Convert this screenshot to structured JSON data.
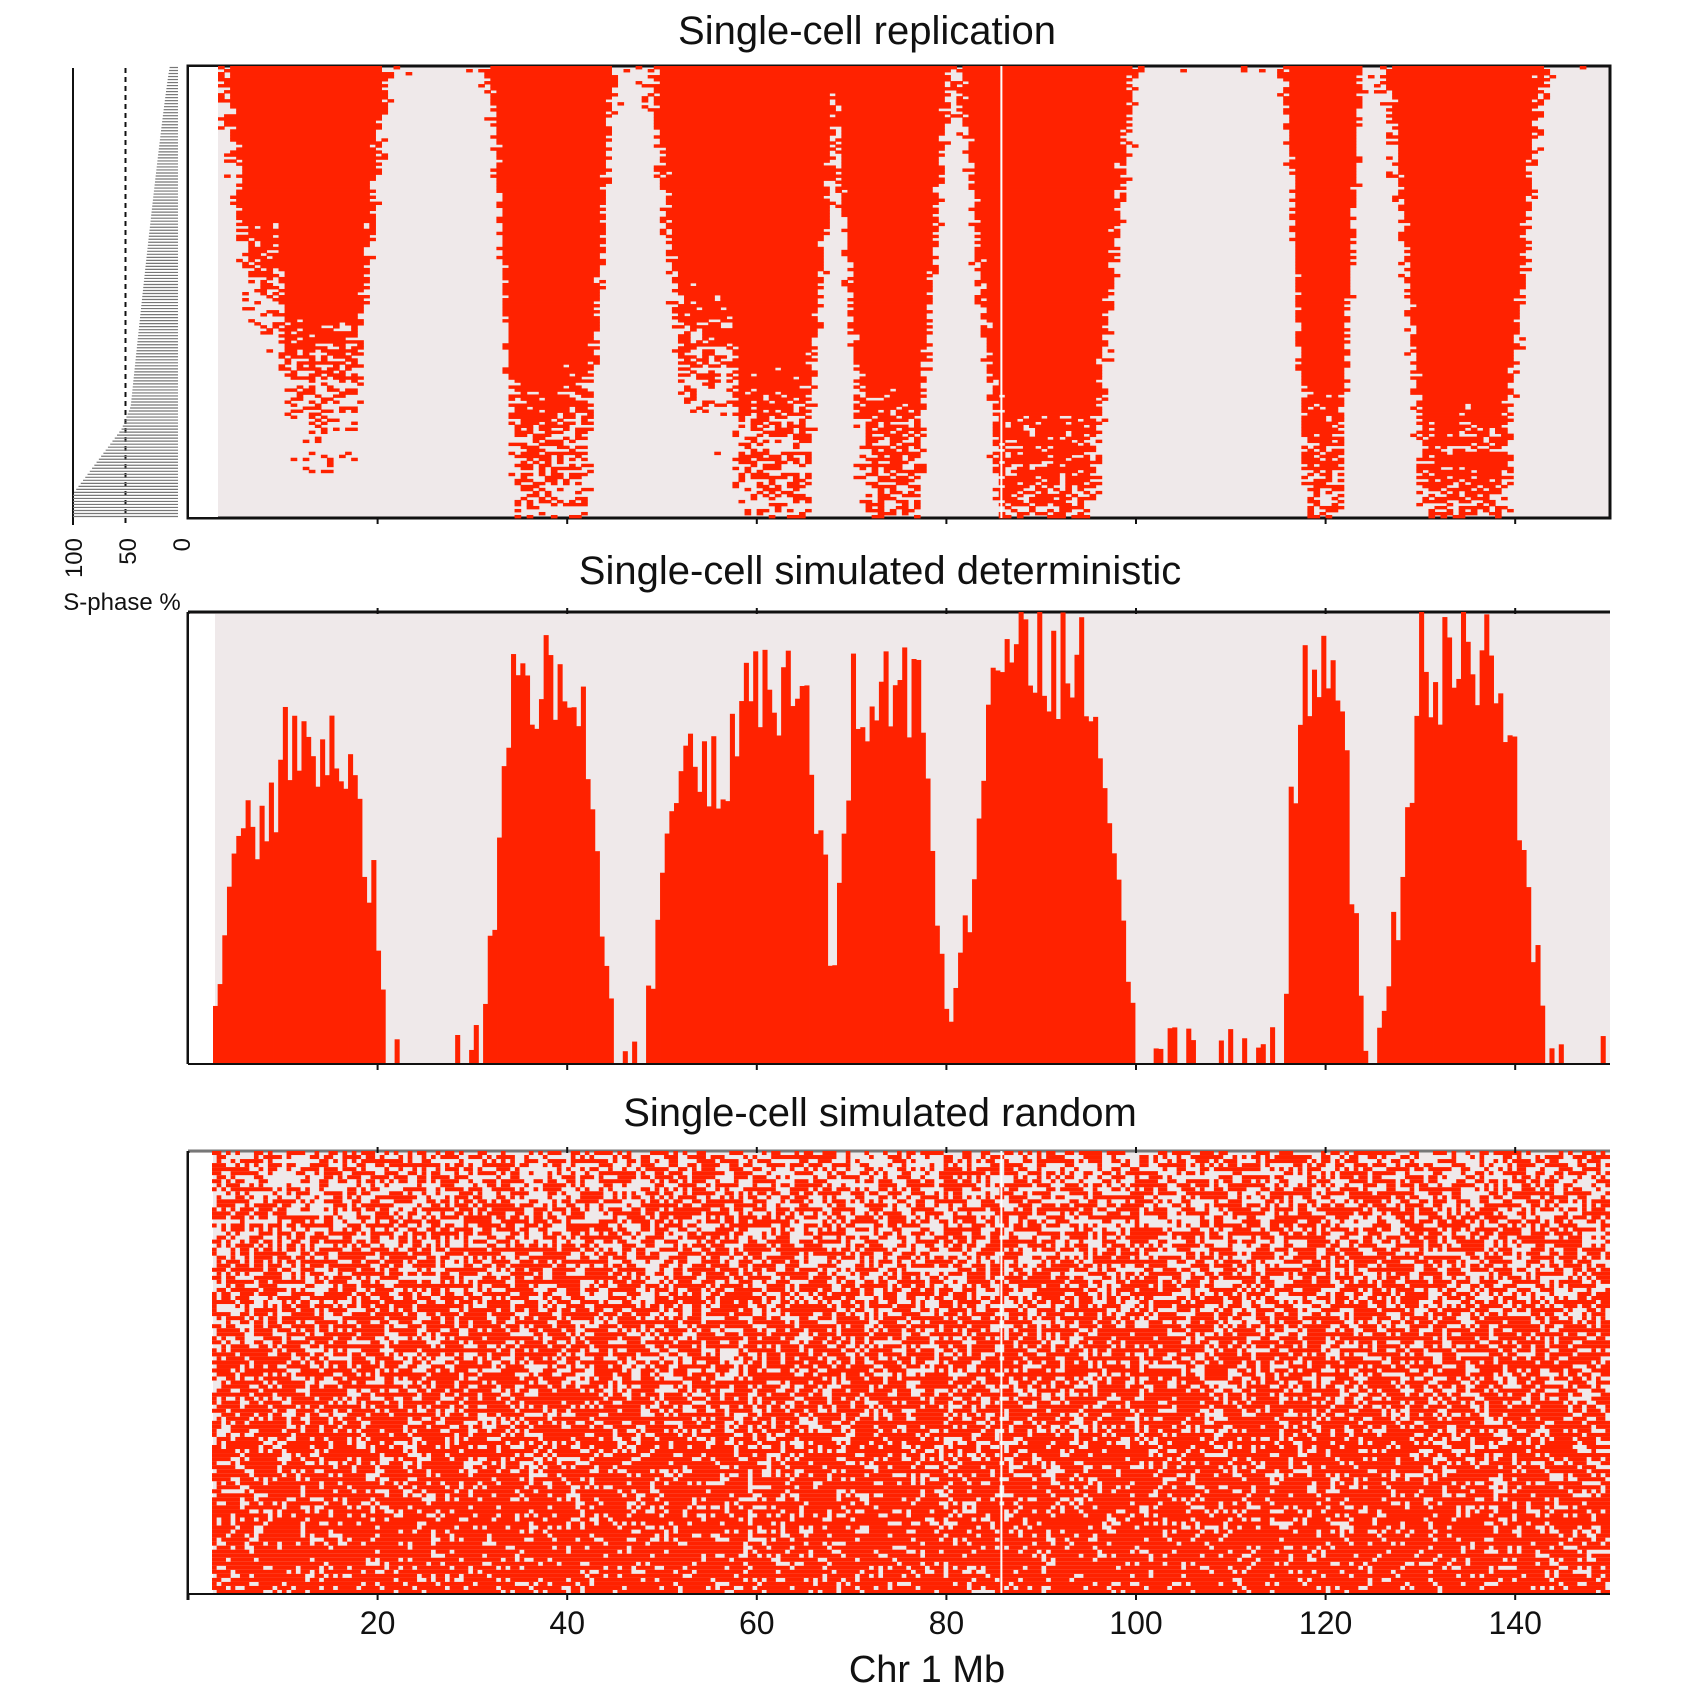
{
  "chart_data": {
    "type": "heatmap",
    "xlabel": "Chr 1 Mb",
    "xlim": [
      0,
      150
    ],
    "xticks": [
      20,
      40,
      60,
      80,
      100,
      120,
      140
    ],
    "ylabel": "S-phase %",
    "ylim": [
      0,
      100
    ],
    "accent_color": "#ff2200",
    "background_color": "#efe9ea",
    "panels": [
      {
        "id": "observed",
        "title": "Single-cell replication",
        "style": "heatmap-observed",
        "early_domains_mb": [
          {
            "start": 6,
            "end": 12,
            "s_phase_pct": 60
          },
          {
            "start": 10,
            "end": 16,
            "s_phase_pct": 80
          },
          {
            "start": 34,
            "end": 38,
            "s_phase_pct": 95
          },
          {
            "start": 37,
            "end": 41,
            "s_phase_pct": 90
          },
          {
            "start": 52,
            "end": 58,
            "s_phase_pct": 75
          },
          {
            "start": 58,
            "end": 64,
            "s_phase_pct": 92
          },
          {
            "start": 71,
            "end": 76,
            "s_phase_pct": 95
          },
          {
            "start": 86,
            "end": 94,
            "s_phase_pct": 100
          },
          {
            "start": 118,
            "end": 121,
            "s_phase_pct": 97
          },
          {
            "start": 131,
            "end": 138,
            "s_phase_pct": 100
          }
        ]
      },
      {
        "id": "deterministic",
        "title": "Single-cell simulated deterministic",
        "style": "step-profile"
      },
      {
        "id": "random",
        "title": "Single-cell simulated random",
        "style": "random-dots",
        "fill_fraction": 0.6
      }
    ],
    "side_histogram": {
      "ylabel": "S-phase %",
      "ticks": [
        100,
        50,
        0
      ],
      "reference_line_pct": 50
    }
  }
}
